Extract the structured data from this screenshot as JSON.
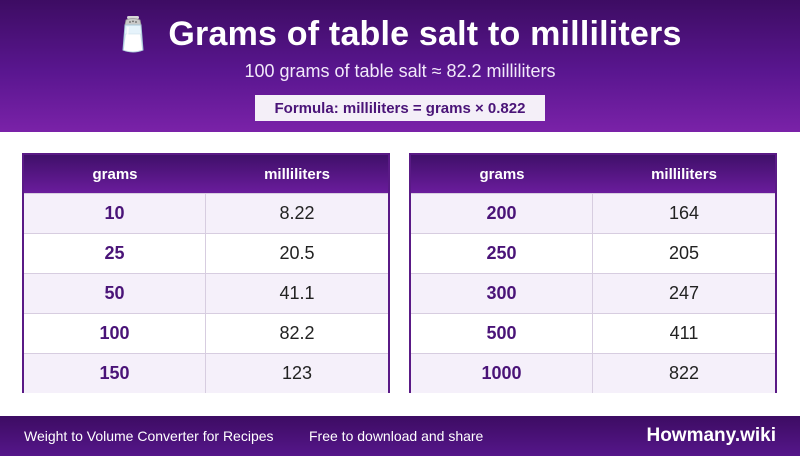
{
  "header": {
    "icon": "salt-shaker-icon",
    "title": "Grams of table salt to milliliters",
    "subtitle": "100 grams of table salt ≈ 82.2 milliliters",
    "formula": "Formula: milliliters = grams × 0.822"
  },
  "tables": [
    {
      "headers": [
        "grams",
        "milliliters"
      ],
      "rows": [
        {
          "grams": "10",
          "ml": "8.22"
        },
        {
          "grams": "25",
          "ml": "20.5"
        },
        {
          "grams": "50",
          "ml": "41.1"
        },
        {
          "grams": "100",
          "ml": "82.2"
        },
        {
          "grams": "150",
          "ml": "123"
        }
      ]
    },
    {
      "headers": [
        "grams",
        "milliliters"
      ],
      "rows": [
        {
          "grams": "200",
          "ml": "164"
        },
        {
          "grams": "250",
          "ml": "205"
        },
        {
          "grams": "300",
          "ml": "247"
        },
        {
          "grams": "500",
          "ml": "411"
        },
        {
          "grams": "1000",
          "ml": "822"
        }
      ]
    }
  ],
  "footer": {
    "left": "Weight to Volume Converter for Recipes",
    "middle": "Free to download and share",
    "brand": "Howmany.wiki"
  },
  "colors": {
    "brand_purple": "#5a1690",
    "dark_purple": "#3d0c63",
    "grams_text": "#4a1478"
  }
}
